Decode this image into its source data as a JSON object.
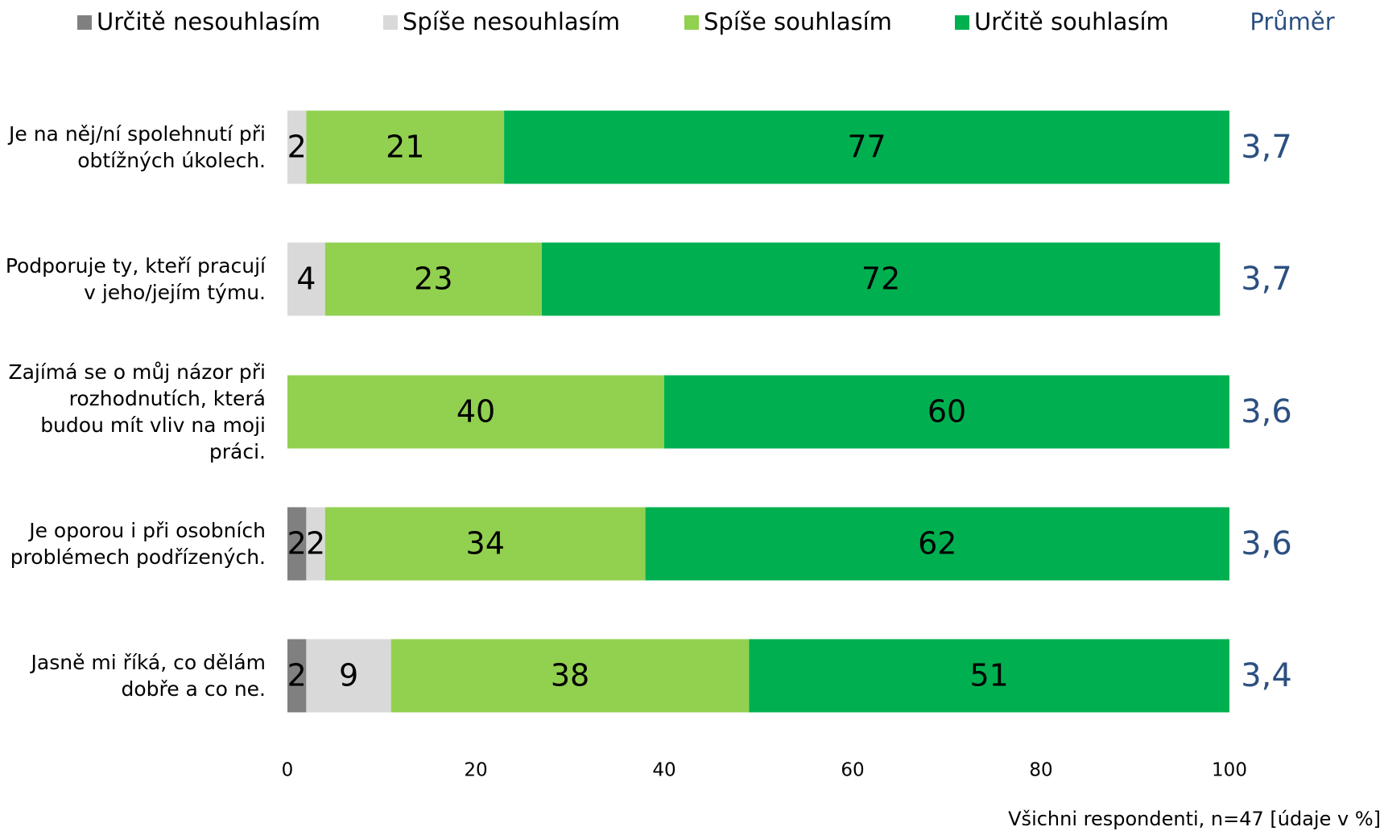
{
  "chart_data": {
    "type": "stacked-bar-horizontal",
    "categories": [
      "Je na něj/ní spolehnutí při obtížných úkolech.",
      "Podporuje ty, kteří pracují v jeho/jejím týmu.",
      "Zajímá se o můj názor při rozhodnutích, která budou mít vliv na moji práci.",
      "Je oporou i při osobních problémech podřízených.",
      "Jasně mi říká, co dělám dobře a co ne."
    ],
    "series": [
      {
        "name": "Určitě nesouhlasím",
        "color": "#808080",
        "values": [
          null,
          null,
          null,
          2,
          2
        ]
      },
      {
        "name": "Spíše nesouhlasím",
        "color": "#d9d9d9",
        "values": [
          2,
          4,
          null,
          2,
          9
        ]
      },
      {
        "name": "Spíše souhlasím",
        "color": "#92d050",
        "values": [
          21,
          23,
          40,
          34,
          38
        ]
      },
      {
        "name": "Určitě souhlasím",
        "color": "#00b050",
        "values": [
          77,
          72,
          60,
          62,
          51
        ]
      }
    ],
    "mean": {
      "name": "Průměr",
      "color": "#2b4f80",
      "values": [
        3.7,
        3.7,
        3.6,
        3.6,
        3.4
      ],
      "value_labels": [
        "3,7",
        "3,7",
        "3,6",
        "3,6",
        "3,4"
      ]
    },
    "xlim": [
      0,
      100
    ],
    "xticks": [
      0,
      20,
      40,
      60,
      80,
      100
    ],
    "note": "Všichni respondenti, n=47 [údaje v %]"
  }
}
